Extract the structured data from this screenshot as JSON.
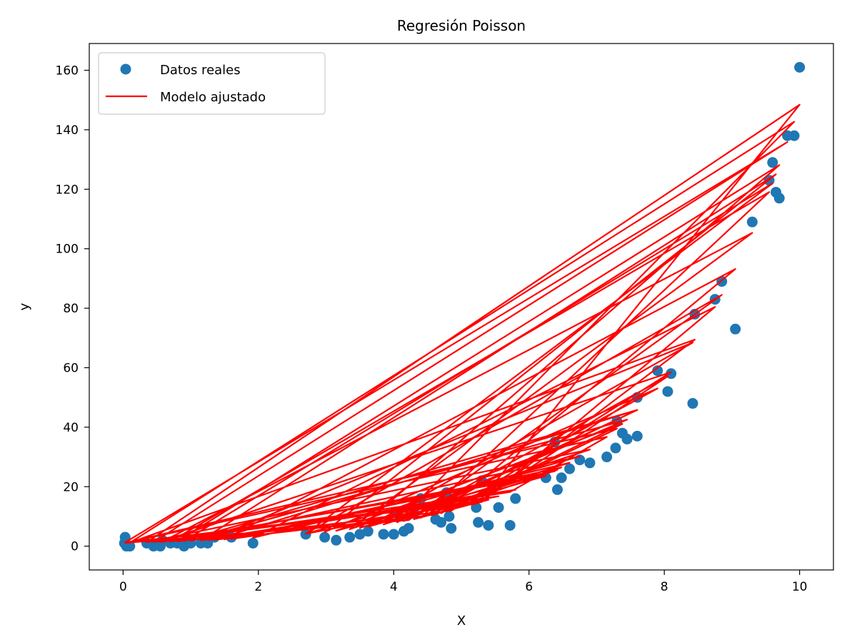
{
  "chart_data": {
    "type": "scatter",
    "title": "Regresión Poisson",
    "xlabel": "X",
    "ylabel": "y",
    "xlim": [
      -0.5,
      10.5
    ],
    "ylim": [
      -8,
      169
    ],
    "xticks": [
      0,
      2,
      4,
      6,
      8,
      10
    ],
    "xtick_labels": [
      "0",
      "2",
      "4",
      "6",
      "8",
      "10"
    ],
    "yticks": [
      0,
      20,
      40,
      60,
      80,
      100,
      120,
      140,
      160
    ],
    "ytick_labels": [
      "0",
      "20",
      "40",
      "60",
      "80",
      "100",
      "120",
      "140",
      "160"
    ],
    "grid": false,
    "legend_position": "upper-left",
    "legend": [
      "Datos reales",
      "Modelo ajustado"
    ],
    "series": [
      {
        "name": "Datos reales",
        "kind": "scatter",
        "color": "#1f77b4",
        "points": [
          [
            0.02,
            1
          ],
          [
            0.03,
            3
          ],
          [
            0.05,
            0
          ],
          [
            0.1,
            0
          ],
          [
            0.35,
            1
          ],
          [
            0.45,
            0
          ],
          [
            0.55,
            0
          ],
          [
            0.58,
            2
          ],
          [
            0.7,
            1
          ],
          [
            0.8,
            1
          ],
          [
            0.9,
            0
          ],
          [
            1.0,
            1
          ],
          [
            1.15,
            1
          ],
          [
            1.25,
            1
          ],
          [
            1.35,
            3
          ],
          [
            1.5,
            4
          ],
          [
            1.6,
            3
          ],
          [
            1.92,
            1
          ],
          [
            2.7,
            4
          ],
          [
            2.98,
            3
          ],
          [
            3.15,
            2
          ],
          [
            3.35,
            3
          ],
          [
            3.5,
            4
          ],
          [
            3.62,
            5
          ],
          [
            3.85,
            4
          ],
          [
            4.0,
            4
          ],
          [
            4.05,
            11
          ],
          [
            4.15,
            5
          ],
          [
            4.22,
            6
          ],
          [
            4.3,
            11
          ],
          [
            4.4,
            16
          ],
          [
            4.62,
            9
          ],
          [
            4.7,
            8
          ],
          [
            4.78,
            18
          ],
          [
            4.82,
            10
          ],
          [
            4.85,
            6
          ],
          [
            5.22,
            13
          ],
          [
            5.25,
            8
          ],
          [
            5.3,
            22
          ],
          [
            5.4,
            7
          ],
          [
            5.55,
            13
          ],
          [
            5.72,
            7
          ],
          [
            5.8,
            16
          ],
          [
            6.25,
            23
          ],
          [
            6.38,
            35
          ],
          [
            6.42,
            19
          ],
          [
            6.48,
            23
          ],
          [
            6.6,
            26
          ],
          [
            6.75,
            29
          ],
          [
            6.9,
            28
          ],
          [
            7.15,
            30
          ],
          [
            7.28,
            33
          ],
          [
            7.3,
            42
          ],
          [
            7.38,
            38
          ],
          [
            7.45,
            36
          ],
          [
            7.6,
            37
          ],
          [
            7.6,
            50
          ],
          [
            7.9,
            59
          ],
          [
            8.05,
            52
          ],
          [
            8.1,
            58
          ],
          [
            8.42,
            48
          ],
          [
            8.45,
            78
          ],
          [
            8.75,
            83
          ],
          [
            8.85,
            89
          ],
          [
            9.05,
            73
          ],
          [
            9.3,
            109
          ],
          [
            9.55,
            123
          ],
          [
            9.6,
            129
          ],
          [
            9.65,
            119
          ],
          [
            9.7,
            117
          ],
          [
            9.82,
            138
          ],
          [
            9.92,
            138
          ],
          [
            10.0,
            161
          ]
        ]
      },
      {
        "name": "Modelo ajustado",
        "kind": "line",
        "color": "#ff0000",
        "model": {
          "form": "exp",
          "intercept": 0.1,
          "slope": 0.49
        },
        "x_order": [
          0.02,
          9.82,
          0.45,
          5.55,
          2.7,
          9.6,
          0.9,
          7.6,
          4.05,
          9.92,
          0.1,
          8.45,
          5.25,
          10.0,
          0.35,
          6.9,
          3.35,
          9.3,
          0.58,
          5.8,
          1.15,
          9.65,
          2.98,
          7.9,
          4.4,
          9.55,
          0.7,
          6.38,
          1.5,
          9.05,
          4.7,
          7.3,
          0.03,
          5.3,
          8.75,
          1.92,
          6.6,
          3.5,
          9.7,
          0.8,
          4.85,
          8.1,
          0.55,
          6.25,
          3.62,
          8.42,
          1.25,
          5.72,
          7.15,
          0.05,
          4.22,
          8.85,
          2.7,
          6.75,
          1.0,
          7.45,
          3.85,
          6.48,
          1.6,
          5.22,
          8.05,
          4.15,
          7.6,
          1.35,
          4.62,
          7.38,
          3.15,
          6.42,
          4.3,
          5.4,
          0.02
        ]
      }
    ]
  }
}
